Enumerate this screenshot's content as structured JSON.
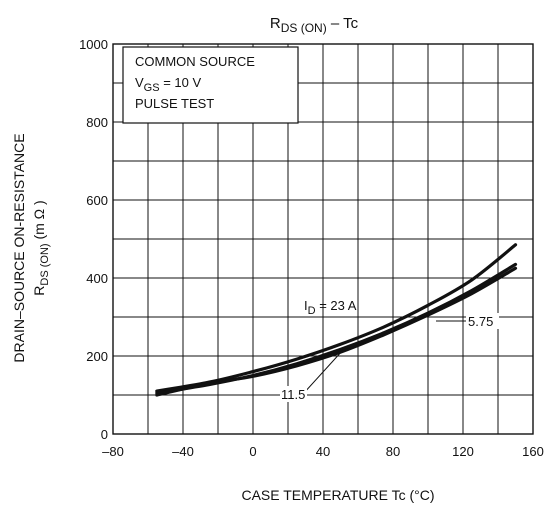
{
  "chart_data": {
    "type": "line",
    "title": {
      "main": "R",
      "sub": "DS (ON)",
      "tail": " – Tc"
    },
    "xlabel": "CASE TEMPERATURE    Tc    (°C)",
    "ylabel": {
      "line1": "DRAIN–SOURCE ON-RESISTANCE",
      "line2_main": "R",
      "line2_sub": "DS (ON)",
      "line2_tail": "   (m Ω )"
    },
    "xlim": [
      -80,
      160
    ],
    "ylim": [
      0,
      1000
    ],
    "xticks": [
      -80,
      -40,
      0,
      40,
      80,
      120,
      160
    ],
    "xtick_labels": [
      "–80",
      "–40",
      "0",
      "40",
      "80",
      "120",
      "160"
    ],
    "yticks": [
      0,
      200,
      400,
      600,
      800,
      1000
    ],
    "ytick_labels": [
      "0",
      "200",
      "400",
      "600",
      "800",
      "1000"
    ],
    "grid": true,
    "conditions": {
      "line1": "COMMON SOURCE",
      "line2_main": "V",
      "line2_sub": "GS",
      "line2_tail": " = 10 V",
      "line3": "PULSE TEST"
    },
    "series": [
      {
        "name": "I_D = 23 A",
        "x": [
          -55,
          -25,
          0,
          25,
          50,
          75,
          100,
          125,
          150
        ],
        "y": [
          110,
          133,
          160,
          192,
          230,
          275,
          330,
          395,
          485
        ]
      },
      {
        "name": "5.75",
        "x": [
          -55,
          -25,
          0,
          25,
          50,
          75,
          100,
          125,
          150
        ],
        "y": [
          100,
          130,
          148,
          175,
          210,
          255,
          305,
          360,
          425
        ]
      },
      {
        "name": "11.5",
        "x": [
          -55,
          -25,
          0,
          25,
          50,
          75,
          100,
          125,
          150
        ],
        "y": [
          105,
          127,
          150,
          180,
          217,
          260,
          310,
          368,
          435
        ]
      }
    ],
    "annotations": {
      "id_main": "I",
      "id_sub": "D",
      "id_tail": " = 23 A",
      "a575": "5.75",
      "a115": "11.5"
    },
    "colors": {
      "line": "#111111",
      "grid": "#111111",
      "background": "#ffffff"
    }
  }
}
